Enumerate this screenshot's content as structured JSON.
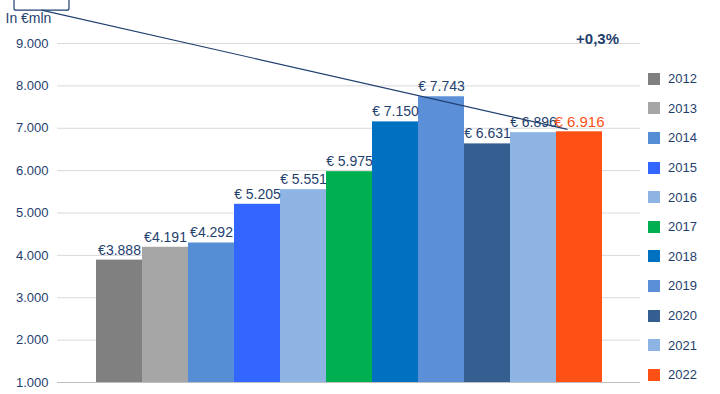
{
  "chart_data": {
    "type": "bar",
    "ylabel": "In €mln",
    "categories": [
      "2012",
      "2013",
      "2014",
      "2015",
      "2016",
      "2017",
      "2018",
      "2019",
      "2020",
      "2021",
      "2022"
    ],
    "values": [
      3888,
      4191,
      4292,
      5205,
      5551,
      5975,
      7150,
      7743,
      6631,
      6896,
      6916
    ],
    "value_labels": [
      "€3.888",
      "€4.191",
      "€4.292",
      "€ 5.205",
      "€ 5.551",
      "€ 5.975",
      "€ 7.150",
      "€ 7.743",
      "€ 6.631",
      "€ 6.896",
      "€ 6.916"
    ],
    "colors": [
      "#808080",
      "#a6a6a6",
      "#558ed5",
      "#3366ff",
      "#8eb4e3",
      "#00b050",
      "#0070c0",
      "#5b8fd8",
      "#355e91",
      "#8eb4e3",
      "#ff5015"
    ],
    "ylim": [
      1000,
      9000
    ],
    "yticks": [
      {
        "value": 1000,
        "label": "1.000"
      },
      {
        "value": 2000,
        "label": "2.000"
      },
      {
        "value": 3000,
        "label": "3.000"
      },
      {
        "value": 4000,
        "label": "4.000"
      },
      {
        "value": 5000,
        "label": "5.000"
      },
      {
        "value": 6000,
        "label": "6.000"
      },
      {
        "value": 7000,
        "label": "7.000"
      },
      {
        "value": 8000,
        "label": "8.000"
      },
      {
        "value": 9000,
        "label": "9.000"
      }
    ],
    "annotations": [
      {
        "text": "+0,3%",
        "category": "2022"
      }
    ],
    "grid": true,
    "legend": "right",
    "data_labels": true,
    "tick_labels": "y"
  }
}
